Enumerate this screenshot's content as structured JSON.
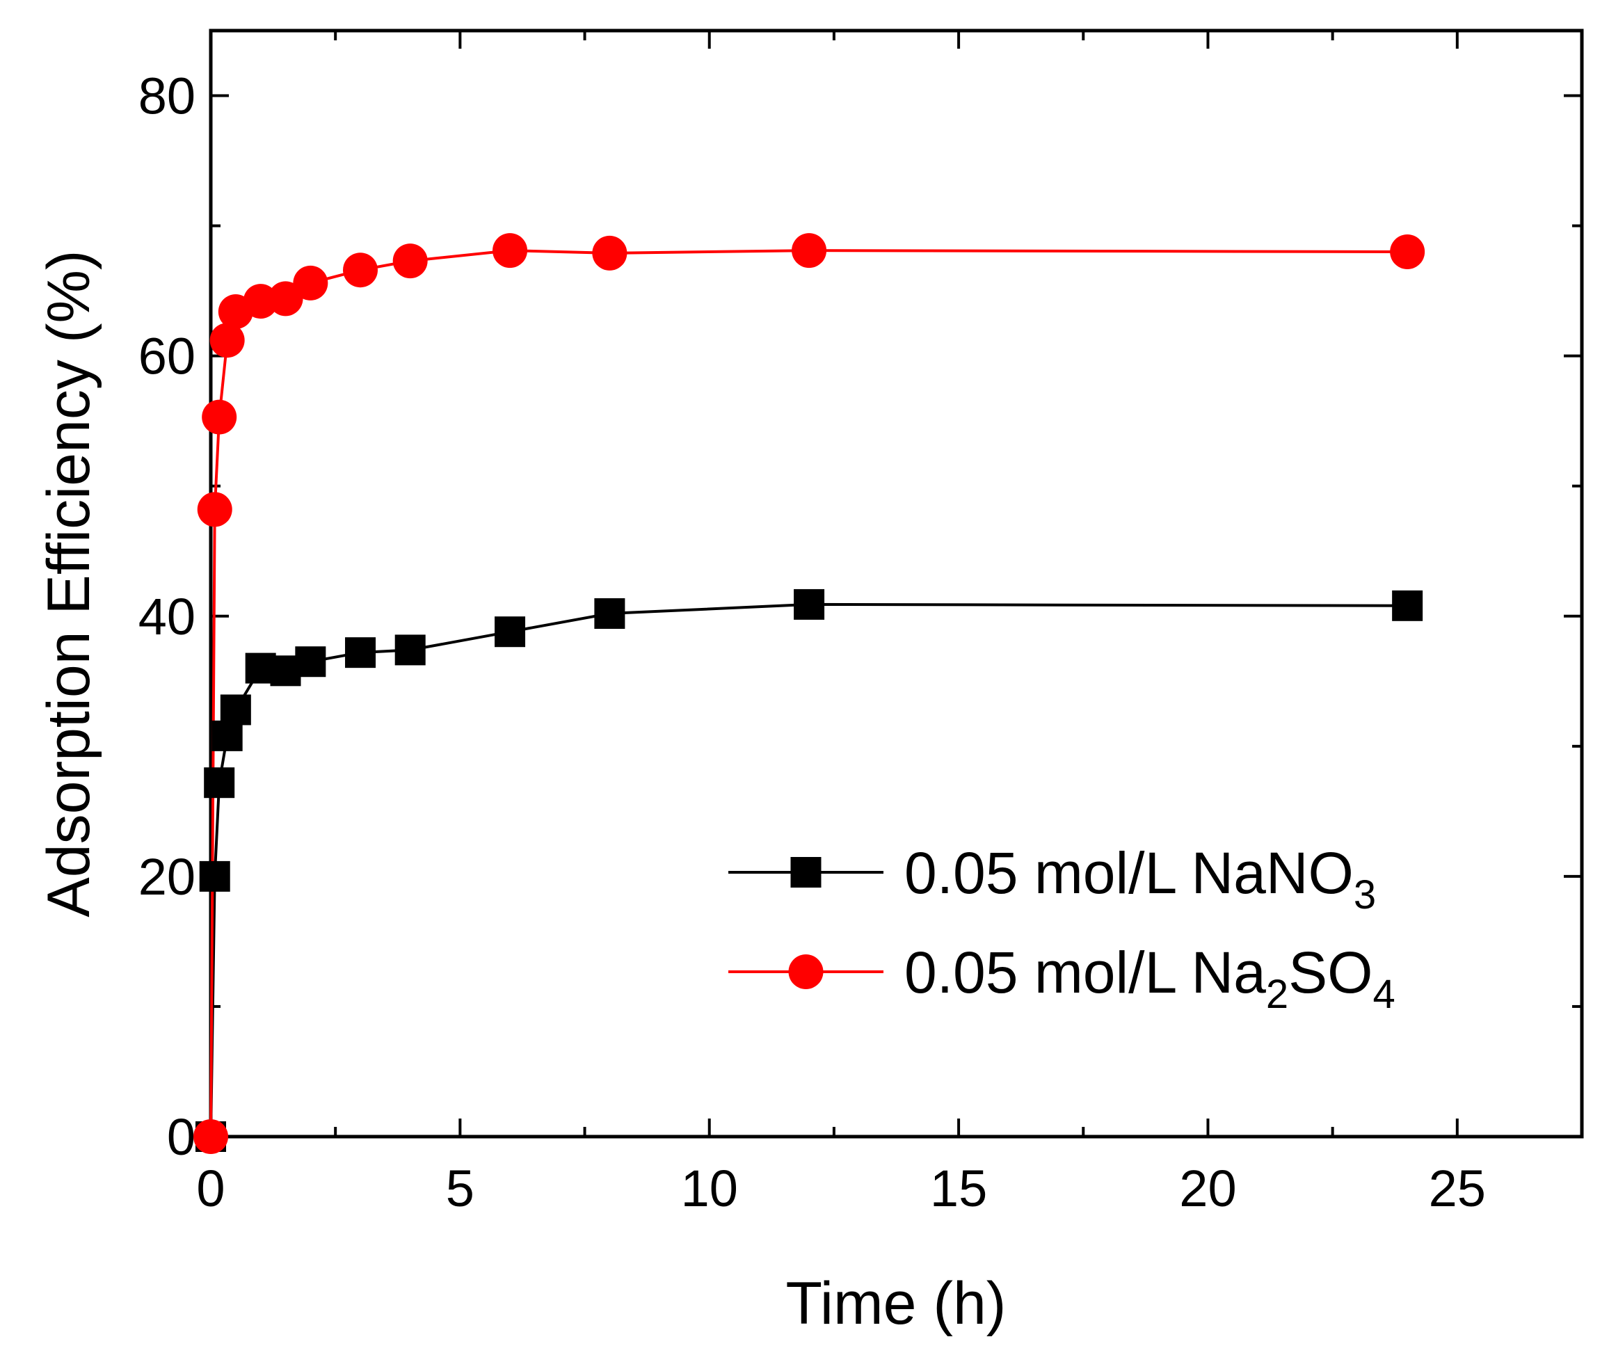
{
  "chart_data": {
    "type": "line",
    "title": "",
    "xlabel": "Time (h)",
    "ylabel": "Adsorption Efficiency (%)",
    "xlim": [
      0,
      27.5
    ],
    "ylim": [
      0,
      85
    ],
    "xticks": [
      0,
      5,
      10,
      15,
      20,
      25
    ],
    "yticks": [
      0,
      20,
      40,
      60,
      80
    ],
    "xtick_labels": [
      "0",
      "5",
      "10",
      "15",
      "20",
      "25"
    ],
    "ytick_labels": [
      "0",
      "20",
      "40",
      "60",
      "80"
    ],
    "grid": false,
    "legend_position": "bottom-right",
    "series": [
      {
        "name": "0.05 mol/L NaNO3",
        "legend_main": "0.05 mol/L NaNO",
        "legend_sub": "3",
        "legend_tail": "",
        "color": "#000000",
        "marker": "square",
        "x": [
          0,
          0.08,
          0.17,
          0.33,
          0.5,
          1.0,
          1.5,
          2.0,
          3.0,
          4.0,
          6.0,
          8.0,
          12.0,
          24.0
        ],
        "y": [
          0,
          20.0,
          27.2,
          30.8,
          32.8,
          36.0,
          35.8,
          36.5,
          37.2,
          37.4,
          38.8,
          40.2,
          40.9,
          40.8
        ]
      },
      {
        "name": "0.05 mol/L Na2SO4",
        "legend_main": "0.05 mol/L Na",
        "legend_sub": "2",
        "legend_tail": "SO",
        "legend_sub2": "4",
        "color": "#ff0000",
        "marker": "circle",
        "x": [
          0,
          0.08,
          0.17,
          0.33,
          0.5,
          1.0,
          1.5,
          2.0,
          3.0,
          4.0,
          6.0,
          8.0,
          12.0,
          24.0
        ],
        "y": [
          0,
          48.2,
          55.3,
          61.2,
          63.4,
          64.2,
          64.4,
          65.6,
          66.6,
          67.3,
          68.1,
          67.9,
          68.1,
          68.0
        ]
      }
    ]
  }
}
